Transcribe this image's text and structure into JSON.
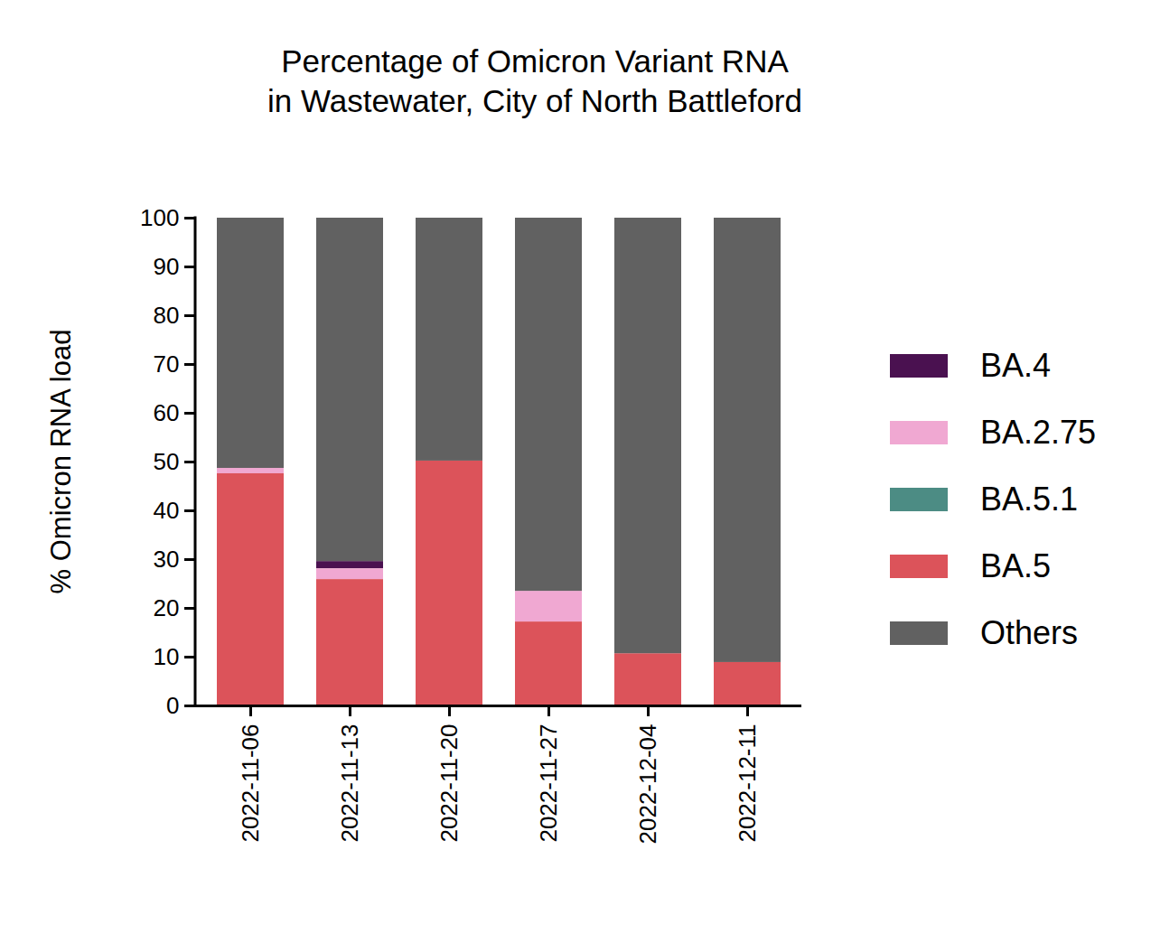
{
  "chart_data": {
    "type": "bar",
    "stacked": true,
    "title": "Percentage of Omicron Variant RNA\nin Wastewater, City of North Battleford",
    "y_label": "% Omicron RNA load",
    "categories": [
      "2022-11-06",
      "2022-11-13",
      "2022-11-20",
      "2022-11-27",
      "2022-12-04",
      "2022-12-11"
    ],
    "series": [
      {
        "name": "BA.4",
        "color": "#4a1150",
        "values": [
          0,
          1.5,
          0,
          0,
          0,
          0
        ]
      },
      {
        "name": "BA.2.75",
        "color": "#f0a8d2",
        "values": [
          1.1,
          2.2,
          0,
          6.3,
          0,
          0
        ]
      },
      {
        "name": "BA.5.1",
        "color": "#4c8c84",
        "values": [
          0,
          0,
          0,
          0,
          0,
          0
        ]
      },
      {
        "name": "BA.5",
        "color": "#dc535a",
        "values": [
          47.6,
          25.9,
          50.2,
          17.2,
          10.7,
          8.9
        ]
      },
      {
        "name": "Others",
        "color": "#616161",
        "values": [
          51.3,
          70.4,
          49.8,
          76.5,
          89.3,
          91.1
        ]
      }
    ],
    "ylim": [
      0,
      100
    ],
    "yticks": [
      0,
      10,
      20,
      30,
      40,
      50,
      60,
      70,
      80,
      90,
      100
    ],
    "grid": false,
    "legend": "right"
  }
}
